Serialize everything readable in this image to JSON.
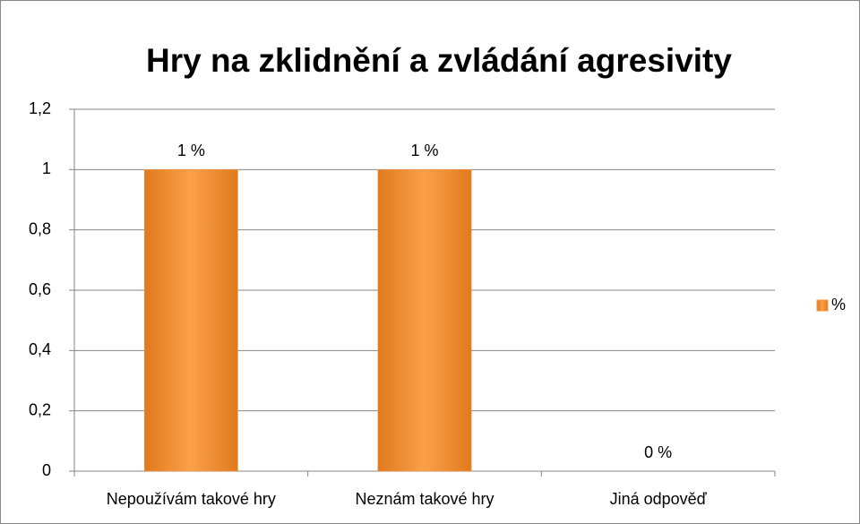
{
  "chart_data": {
    "type": "bar",
    "title": "Hry na zklidnění a zvládání agresivity",
    "categories": [
      "Nepoužívám takové hry",
      "Neznám takové hry",
      "Jiná odpověď"
    ],
    "series": [
      {
        "name": "%",
        "color": "#f79646",
        "values": [
          1,
          1,
          0
        ],
        "value_labels": [
          "1 %",
          "1 %",
          "0 %"
        ]
      }
    ],
    "ylim": [
      0,
      1.2
    ],
    "yticks": [
      0,
      {
        "value": 0.2,
        "label": "0,2"
      },
      {
        "value": 0.4,
        "label": "0,4"
      },
      {
        "value": 0.6,
        "label": "0,6"
      },
      {
        "value": 0.8,
        "label": "0,8"
      },
      1,
      {
        "value": 1.2,
        "label": "1,2"
      }
    ],
    "grid": true,
    "legend": "right"
  }
}
